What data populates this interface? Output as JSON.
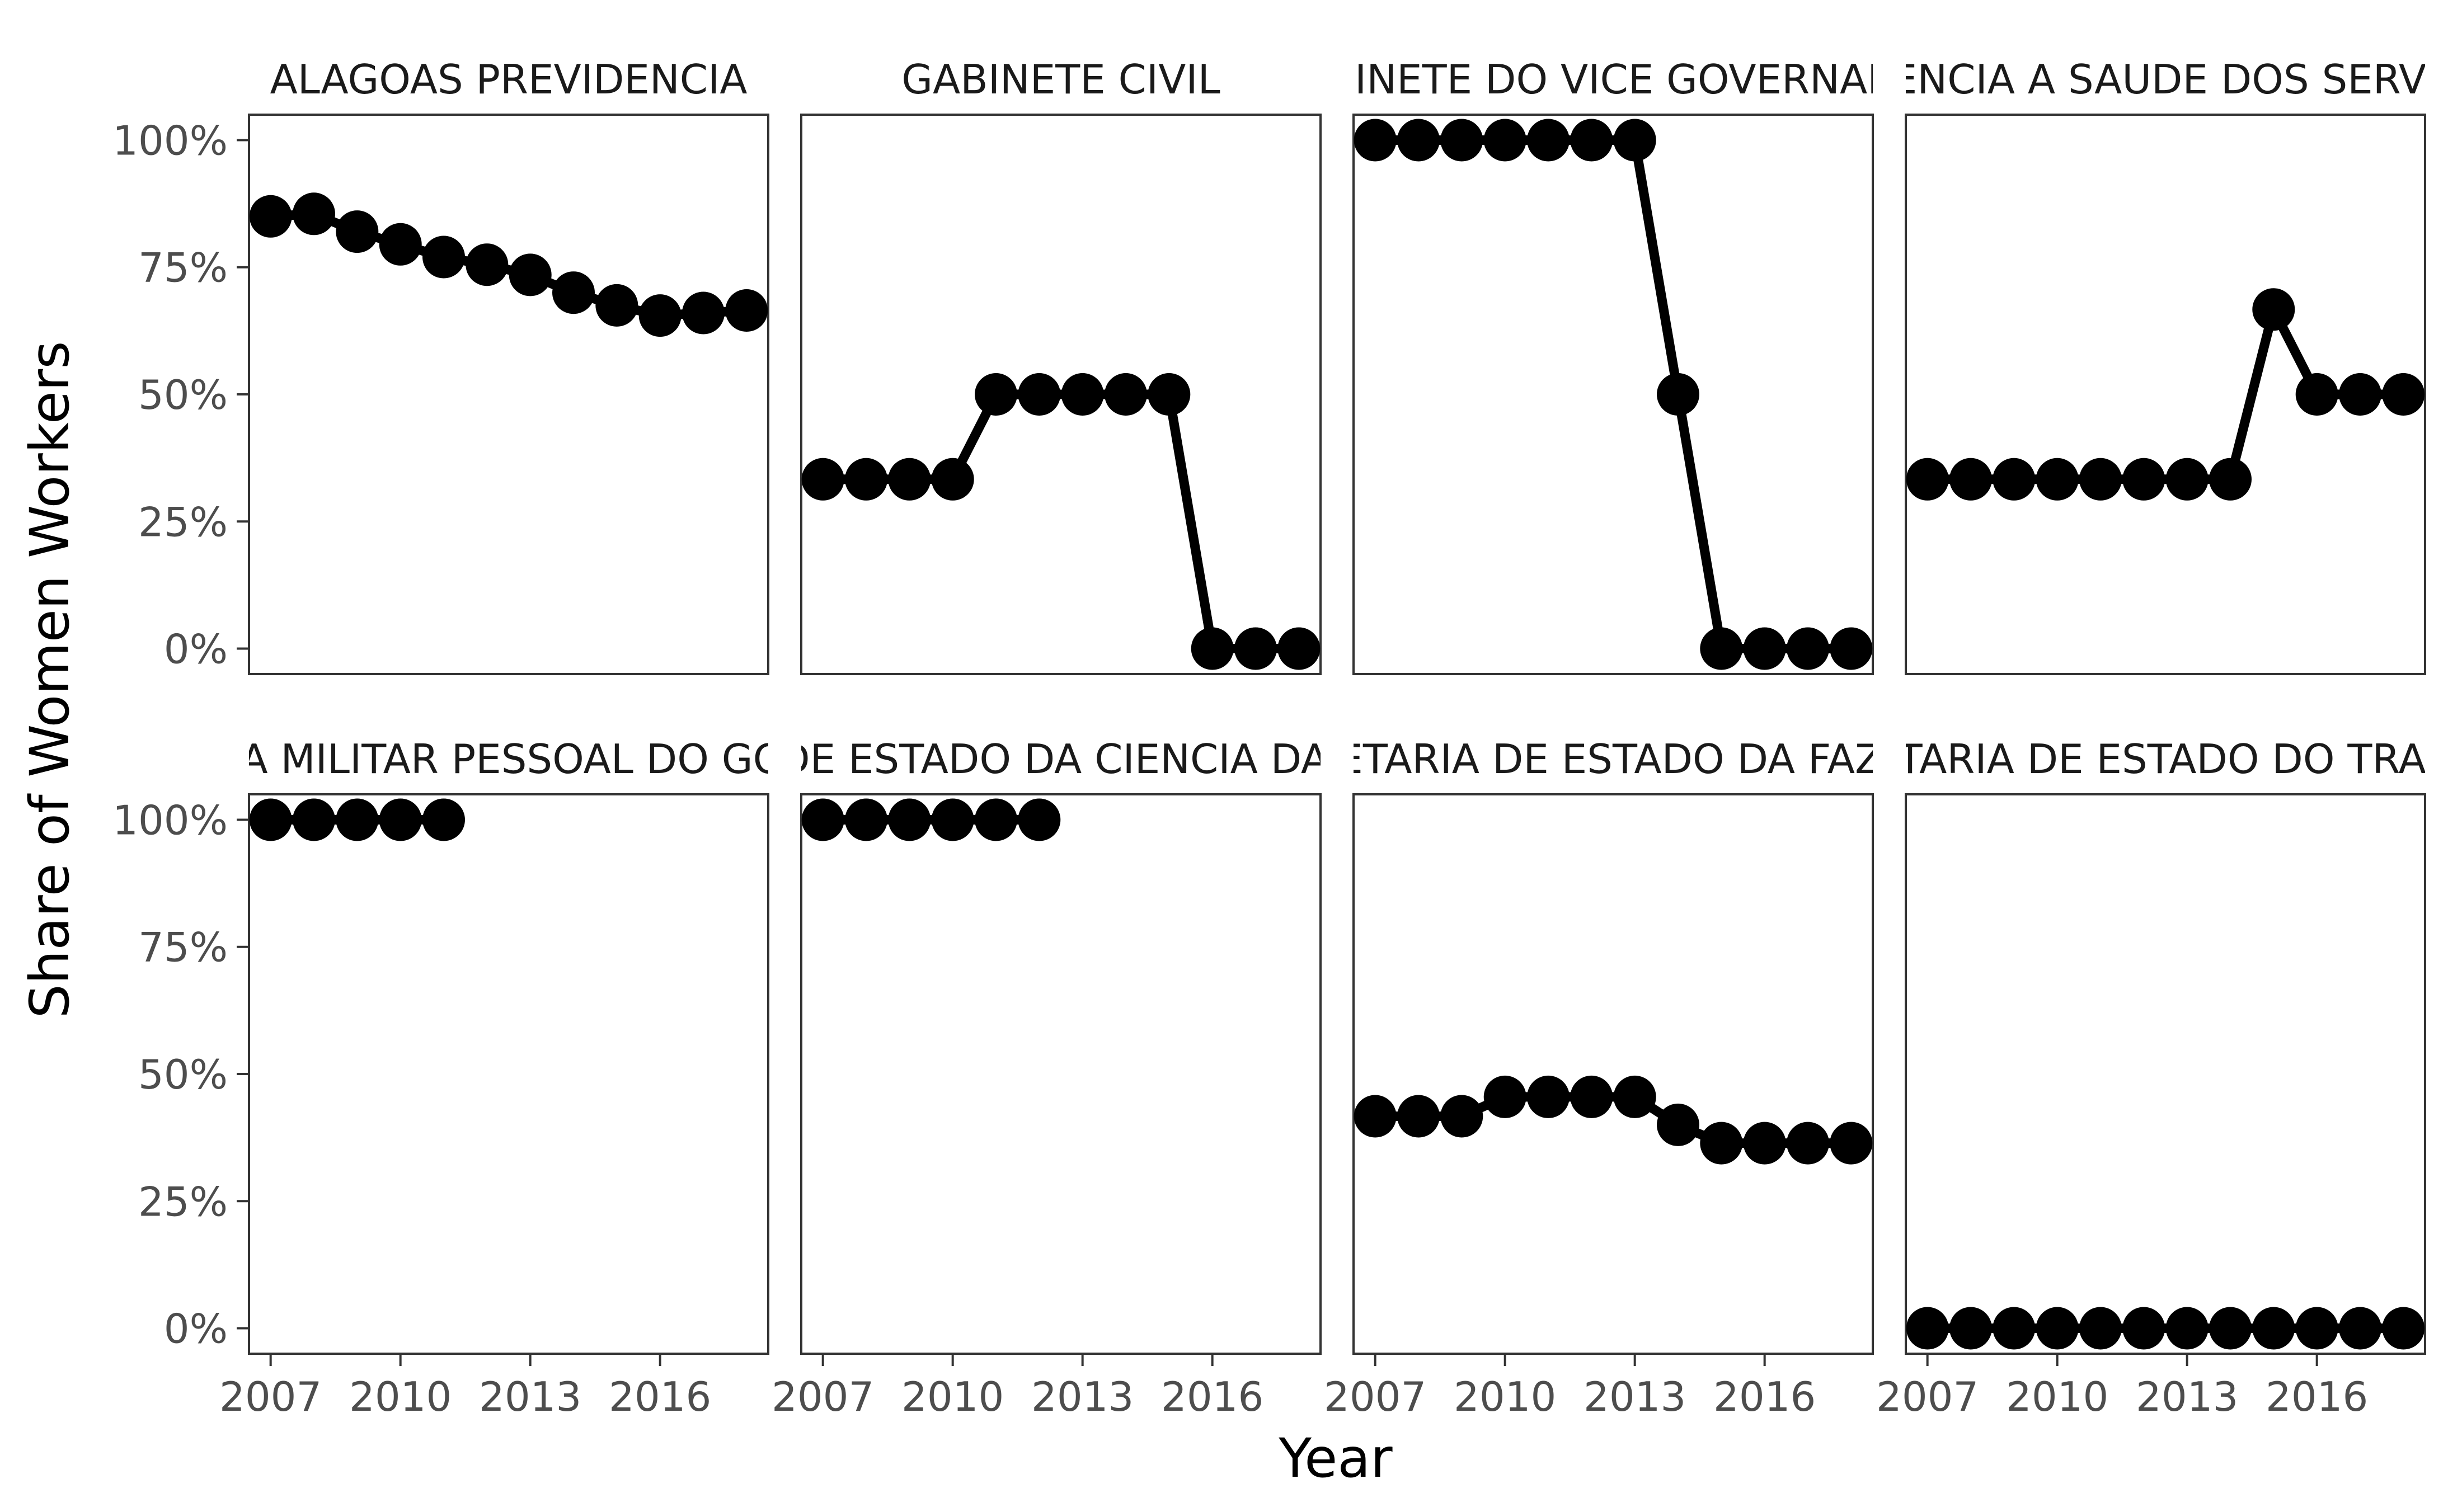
{
  "chart_data": {
    "type": "line",
    "xlabel": "Year",
    "ylabel": "Share of Women Workers",
    "x_ticks": [
      2007,
      2010,
      2013,
      2016
    ],
    "x_tick_labels": [
      "2007",
      "2010",
      "2013",
      "2016"
    ],
    "xlim": [
      2006.5,
      2018.5
    ],
    "y_ticks": [
      0,
      0.25,
      0.5,
      0.75,
      1.0
    ],
    "y_tick_labels": [
      "0%",
      "25%",
      "50%",
      "75%",
      "100%"
    ],
    "ylim": [
      -0.05,
      1.05
    ],
    "grid": false,
    "legend": "none",
    "layout": {
      "rows": 2,
      "cols": 4
    },
    "series_color": "#000000",
    "panels": [
      {
        "title": "ALAGOAS PREVIDENCIA",
        "x": [
          2007,
          2008,
          2009,
          2010,
          2011,
          2012,
          2013,
          2014,
          2015,
          2016,
          2017,
          2018
        ],
        "y": [
          0.85,
          0.855,
          0.82,
          0.795,
          0.77,
          0.755,
          0.735,
          0.7,
          0.675,
          0.655,
          0.66,
          0.665
        ]
      },
      {
        "title": "GABINETE CIVIL",
        "x": [
          2007,
          2008,
          2009,
          2010,
          2011,
          2012,
          2013,
          2014,
          2015,
          2016,
          2017,
          2018
        ],
        "y": [
          0.333,
          0.333,
          0.333,
          0.333,
          0.5,
          0.5,
          0.5,
          0.5,
          0.5,
          0.0,
          0.0,
          0.0
        ]
      },
      {
        "title": "GABINETE DO VICE GOVERNADOR",
        "x": [
          2007,
          2008,
          2009,
          2010,
          2011,
          2012,
          2013,
          2014,
          2015,
          2016,
          2017,
          2018
        ],
        "y": [
          1.0,
          1.0,
          1.0,
          1.0,
          1.0,
          1.0,
          1.0,
          0.5,
          0.0,
          0.0,
          0.0,
          0.0
        ]
      },
      {
        "title": "ASSISTENCIA A SAUDE DOS SERVIDORES",
        "x": [
          2007,
          2008,
          2009,
          2010,
          2011,
          2012,
          2013,
          2014,
          2015,
          2016,
          2017,
          2018
        ],
        "y": [
          0.333,
          0.333,
          0.333,
          0.333,
          0.333,
          0.333,
          0.333,
          0.333,
          0.667,
          0.5,
          0.5,
          0.5
        ]
      },
      {
        "title": "ASSISTENCIA MILITAR PESSOAL DO GOVERNADOR",
        "x": [
          2007,
          2008,
          2009,
          2010,
          2011
        ],
        "y": [
          1.0,
          1.0,
          1.0,
          1.0,
          1.0
        ]
      },
      {
        "title": "SECRETARIA DE ESTADO DA CIENCIA DA TECNOLOGIA",
        "x": [
          2007,
          2008,
          2009,
          2010,
          2011,
          2012
        ],
        "y": [
          1.0,
          1.0,
          1.0,
          1.0,
          1.0,
          1.0
        ]
      },
      {
        "title": "SECRETARIA DE ESTADO DA FAZENDA",
        "x": [
          2007,
          2008,
          2009,
          2010,
          2011,
          2012,
          2013,
          2014,
          2015,
          2016,
          2017,
          2018
        ],
        "y": [
          0.417,
          0.417,
          0.417,
          0.455,
          0.455,
          0.455,
          0.455,
          0.4,
          0.364,
          0.364,
          0.364,
          0.364
        ]
      },
      {
        "title": "SECRETARIA DE ESTADO DO TRABALHO",
        "x": [
          2007,
          2008,
          2009,
          2010,
          2011,
          2012,
          2013,
          2014,
          2015,
          2016,
          2017,
          2018
        ],
        "y": [
          0,
          0,
          0,
          0,
          0,
          0,
          0,
          0,
          0,
          0,
          0,
          0
        ]
      }
    ]
  }
}
